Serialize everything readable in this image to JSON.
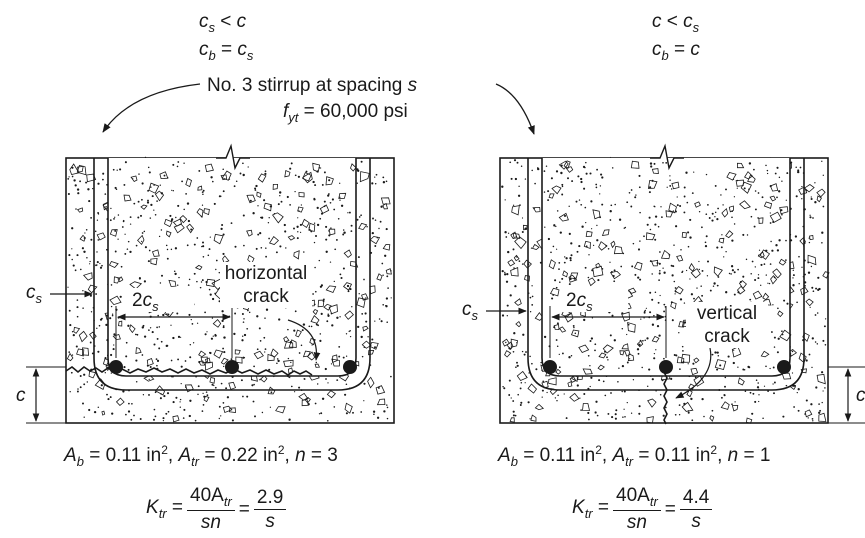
{
  "left": {
    "cond1": {
      "a": "c",
      "a_sub": "s",
      "op": " < ",
      "b": "c",
      "b_sub": ""
    },
    "cond2": {
      "a": "c",
      "a_sub": "b",
      "op": " = ",
      "b": "c",
      "b_sub": "s"
    },
    "dim_side": {
      "sym": "c",
      "sub": "s"
    },
    "dim_bottom": "c",
    "dim_2cs": {
      "coef": "2",
      "sym": "c",
      "sub": "s"
    },
    "crack_label_1": "horizontal",
    "crack_label_2": "crack",
    "areas": {
      "ab_sym": "A",
      "ab_sub": "b",
      "ab_val": " = 0.11 in",
      "ab_exp": "2",
      "atr_sym": "A",
      "atr_sub": "tr",
      "atr_val": " = 0.22 in",
      "atr_exp": "2",
      "n_sym": "n",
      "n_val": " = 3"
    },
    "ktr": {
      "sym": "K",
      "sub": "tr",
      "eq": " = ",
      "num": "40A",
      "num_sub": "tr",
      "den": "sn",
      "eq2": " = ",
      "rnum": "2.9",
      "rden": "s"
    }
  },
  "right": {
    "cond1": {
      "a": "c",
      "a_sub": "",
      "op": " < ",
      "b": "c",
      "b_sub": "s"
    },
    "cond2": {
      "a": "c",
      "a_sub": "b",
      "op": " = ",
      "b": "c",
      "b_sub": ""
    },
    "dim_side": {
      "sym": "c",
      "sub": "s"
    },
    "dim_bottom": "c",
    "dim_2cs": {
      "coef": "2",
      "sym": "c",
      "sub": "s"
    },
    "crack_label_1": "vertical",
    "crack_label_2": "crack",
    "areas": {
      "ab_sym": "A",
      "ab_sub": "b",
      "ab_val": " = 0.11 in",
      "ab_exp": "2",
      "atr_sym": "A",
      "atr_sub": "tr",
      "atr_val": " = 0.11 in",
      "atr_exp": "2",
      "n_sym": "n",
      "n_val": " = 1"
    },
    "ktr": {
      "sym": "K",
      "sub": "tr",
      "eq": " = ",
      "num": "40A",
      "num_sub": "tr",
      "den": "sn",
      "eq2": " = ",
      "rnum": "4.4",
      "rden": "s"
    }
  },
  "stirrup": {
    "line1": "No. 3 stirrup at spacing ",
    "line1_var": "s",
    "line2_sym": "f",
    "line2_sub": "yt",
    "line2_val": " = 60,000 psi"
  },
  "colors": {
    "ink": "#1a1a1a",
    "paper": "#ffffff"
  }
}
